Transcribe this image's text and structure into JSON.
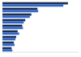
{
  "chart_data": {
    "type": "bar",
    "orientation": "horizontal",
    "tick_labels": false,
    "categories": [
      null,
      null,
      null,
      null,
      null,
      null,
      null,
      null,
      null
    ],
    "series": [
      {
        "color": "#1c2e4f",
        "values": [
          86,
          46,
          38,
          30,
          26,
          20,
          18,
          15,
          12
        ]
      },
      {
        "color": "#2f66cc",
        "values": [
          80,
          47,
          36,
          28,
          27,
          22,
          17,
          16,
          13
        ]
      }
    ],
    "xlim": [
      0,
      100
    ]
  }
}
